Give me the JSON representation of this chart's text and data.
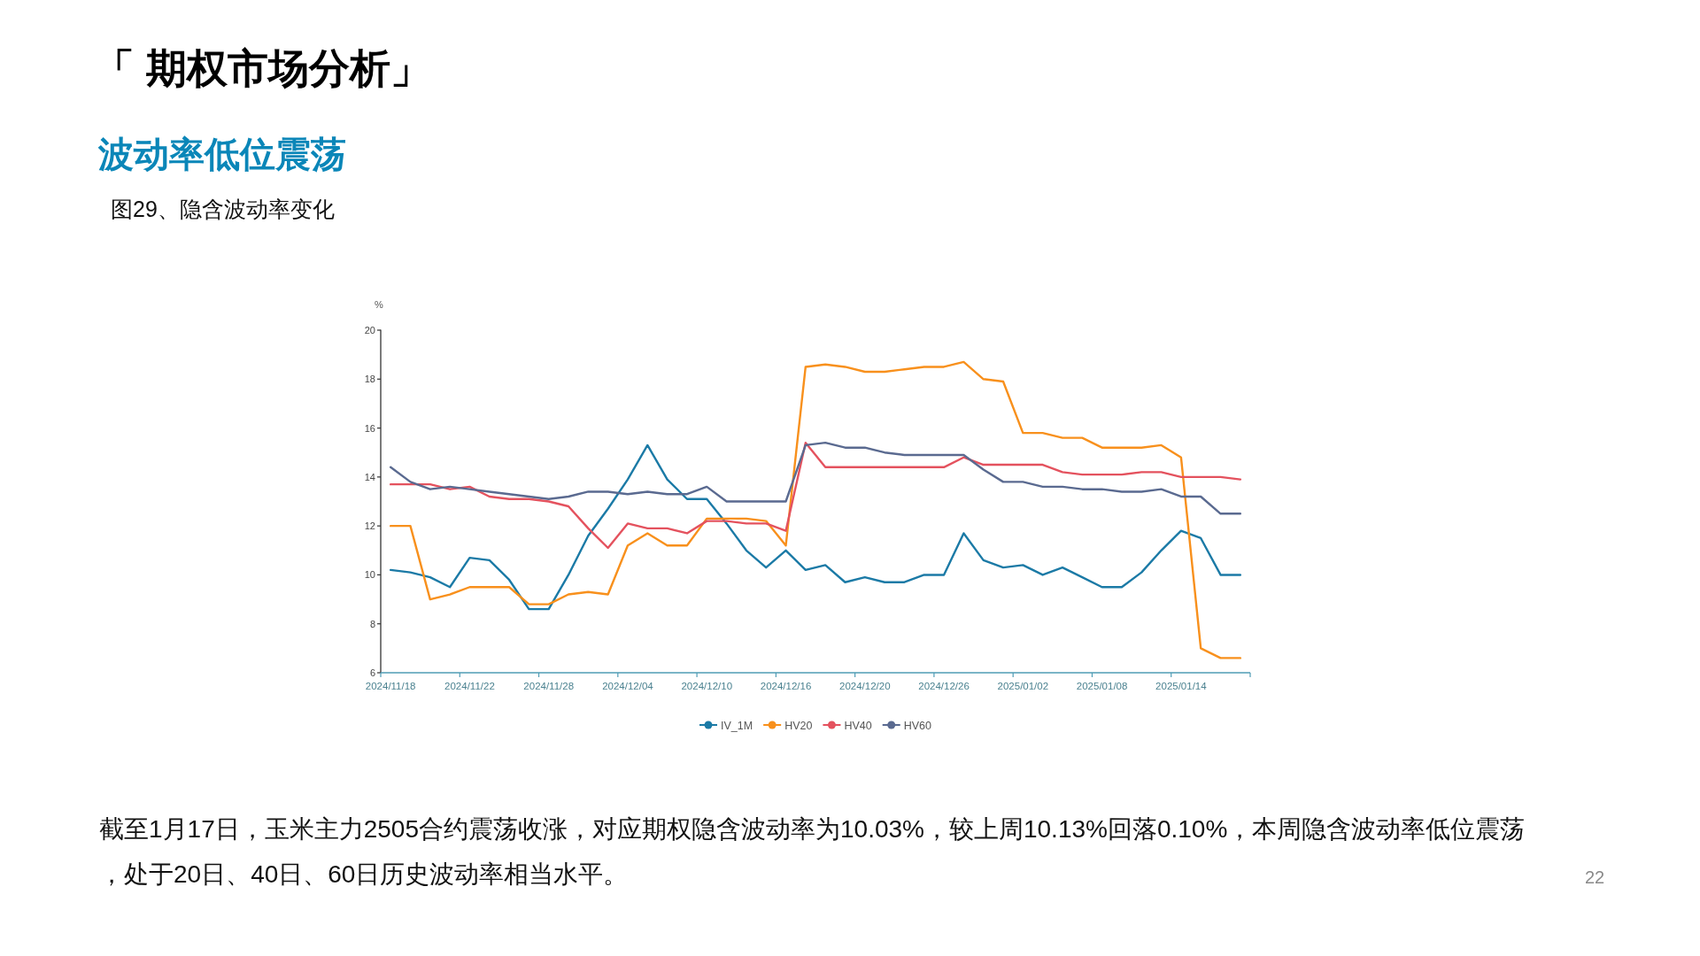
{
  "chart_data": {
    "type": "line",
    "title": "「 期权市场分析」",
    "subtitle": "波动率低位震荡",
    "ylabel": "%",
    "categories": [
      "2024/11/18",
      null,
      null,
      null,
      "2024/11/22",
      null,
      null,
      null,
      "2024/11/28",
      null,
      null,
      null,
      "2024/12/04",
      null,
      null,
      null,
      "2024/12/10",
      null,
      null,
      null,
      "2024/12/16",
      null,
      null,
      null,
      "2024/12/20",
      null,
      null,
      null,
      "2024/12/26",
      null,
      null,
      null,
      "2025/01/02",
      null,
      null,
      null,
      "2025/01/08",
      null,
      null,
      null,
      "2025/01/14",
      null,
      null,
      null
    ],
    "series": [
      {
        "name": "IV_1M",
        "color": "#1b7aa6",
        "values": [
          10.2,
          10.1,
          9.9,
          9.5,
          10.7,
          10.6,
          9.8,
          8.6,
          8.6,
          10.0,
          11.6,
          12.7,
          13.9,
          15.3,
          13.9,
          13.1,
          13.1,
          12.1,
          11.0,
          10.3,
          11.0,
          10.2,
          10.4,
          9.7,
          9.9,
          9.7,
          9.7,
          10.0,
          10.0,
          11.7,
          10.6,
          10.3,
          10.4,
          10.0,
          10.3,
          9.9,
          9.5,
          9.5,
          10.1,
          11.0,
          11.8,
          11.5,
          10.0,
          10.0
        ]
      },
      {
        "name": "HV20",
        "color": "#f8901c",
        "values": [
          12.0,
          12.0,
          9.0,
          9.2,
          9.5,
          9.5,
          9.5,
          8.8,
          8.8,
          9.2,
          9.3,
          9.2,
          11.2,
          11.7,
          11.2,
          11.2,
          12.3,
          12.3,
          12.3,
          12.2,
          11.2,
          18.5,
          18.6,
          18.5,
          18.3,
          18.3,
          18.4,
          18.5,
          18.5,
          18.7,
          18.0,
          17.9,
          15.8,
          15.8,
          15.6,
          15.6,
          15.2,
          15.2,
          15.2,
          15.3,
          14.8,
          7.0,
          6.6,
          6.6
        ]
      },
      {
        "name": "HV40",
        "color": "#e4525e",
        "values": [
          13.7,
          13.7,
          13.7,
          13.5,
          13.6,
          13.2,
          13.1,
          13.1,
          13.0,
          12.8,
          11.9,
          11.1,
          12.1,
          11.9,
          11.9,
          11.7,
          12.2,
          12.2,
          12.1,
          12.1,
          11.8,
          15.4,
          14.4,
          14.4,
          14.4,
          14.4,
          14.4,
          14.4,
          14.4,
          14.8,
          14.5,
          14.5,
          14.5,
          14.5,
          14.2,
          14.1,
          14.1,
          14.1,
          14.2,
          14.2,
          14.0,
          14.0,
          14.0,
          13.9
        ]
      },
      {
        "name": "HV60",
        "color": "#5a6a90",
        "values": [
          14.4,
          13.8,
          13.5,
          13.6,
          13.5,
          13.4,
          13.3,
          13.2,
          13.1,
          13.2,
          13.4,
          13.4,
          13.3,
          13.4,
          13.3,
          13.3,
          13.6,
          13.0,
          13.0,
          13.0,
          13.0,
          15.3,
          15.4,
          15.2,
          15.2,
          15.0,
          14.9,
          14.9,
          14.9,
          14.9,
          14.3,
          13.8,
          13.8,
          13.6,
          13.6,
          13.5,
          13.5,
          13.4,
          13.4,
          13.5,
          13.2,
          13.2,
          12.5,
          12.5
        ]
      }
    ],
    "ylim": [
      6,
      20
    ],
    "yticks": [
      6,
      8,
      10,
      12,
      14,
      16,
      18,
      20
    ],
    "legend": "bottom",
    "annotations": [
      "图29、隐含波动率变化",
      "截至1月17日，玉米主力2505合约震荡收涨，对应期权隐含波动率为10.03%，较上周10.13%回落0.10%，本周隐含波动率低位震荡，处于20日、40日、60日历史波动率相当水平。",
      "22"
    ]
  }
}
